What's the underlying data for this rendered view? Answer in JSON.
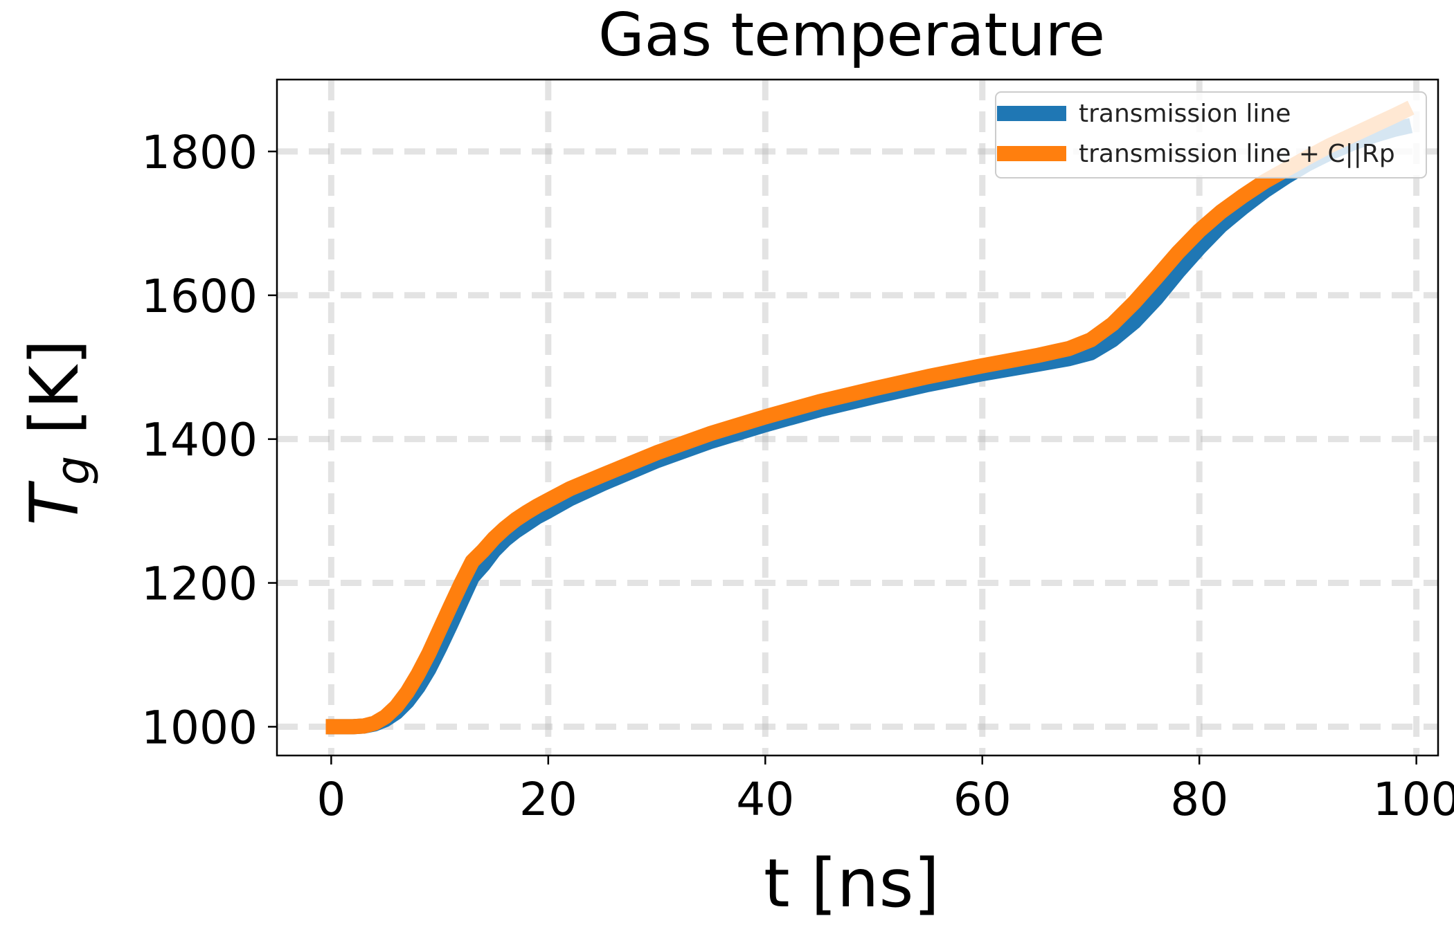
{
  "chart_data": {
    "type": "line",
    "title": "Gas temperature",
    "xlabel": "t [ns]",
    "ylabel": {
      "main": "T",
      "subscript": "g",
      "unit": " [K]"
    },
    "xlim": [
      -5,
      102
    ],
    "ylim": [
      960,
      1900
    ],
    "xticks": [
      0,
      20,
      40,
      60,
      80,
      100
    ],
    "yticks": [
      1000,
      1200,
      1400,
      1600,
      1800
    ],
    "grid": true,
    "legend_position": "top-right",
    "series": [
      {
        "name": "transmission line",
        "color": "#1f77b4",
        "x": [
          -0.5,
          0,
          2,
          3,
          4,
          5,
          6,
          7,
          8,
          9,
          10,
          11,
          12,
          13,
          14,
          15,
          16,
          17,
          18,
          19,
          20,
          22,
          25,
          30,
          35,
          40,
          45,
          50,
          55,
          60,
          65,
          68,
          70,
          72,
          74,
          76,
          78,
          80,
          82,
          84,
          86,
          88,
          90,
          92,
          94,
          96,
          98,
          99.5
        ],
        "y": [
          1000,
          1000,
          1000,
          1001,
          1004,
          1010,
          1020,
          1035,
          1055,
          1080,
          1110,
          1142,
          1175,
          1208,
          1225,
          1245,
          1260,
          1272,
          1282,
          1292,
          1300,
          1317,
          1338,
          1370,
          1397,
          1420,
          1441,
          1459,
          1476,
          1491,
          1504,
          1512,
          1520,
          1538,
          1563,
          1595,
          1632,
          1666,
          1697,
          1722,
          1745,
          1765,
          1783,
          1798,
          1811,
          1822,
          1831,
          1836
        ]
      },
      {
        "name": "transmission line + C||Rp",
        "color": "#ff7f0e",
        "x": [
          -0.5,
          0,
          2,
          3,
          4,
          5,
          6,
          7,
          8,
          9,
          10,
          11,
          12,
          13,
          14,
          15,
          16,
          17,
          18,
          19,
          20,
          22,
          25,
          30,
          35,
          40,
          45,
          50,
          55,
          60,
          65,
          68,
          70,
          72,
          74,
          76,
          78,
          80,
          82,
          84,
          86,
          88,
          90,
          92,
          94,
          96,
          98,
          99.5
        ],
        "y": [
          1000,
          1000,
          1000,
          1001,
          1005,
          1014,
          1028,
          1048,
          1073,
          1102,
          1135,
          1168,
          1200,
          1230,
          1245,
          1262,
          1276,
          1288,
          1298,
          1307,
          1315,
          1331,
          1350,
          1381,
          1408,
          1431,
          1452,
          1470,
          1487,
          1502,
          1516,
          1526,
          1538,
          1560,
          1590,
          1624,
          1659,
          1690,
          1716,
          1738,
          1758,
          1775,
          1792,
          1808,
          1822,
          1836,
          1850,
          1861
        ]
      }
    ]
  }
}
